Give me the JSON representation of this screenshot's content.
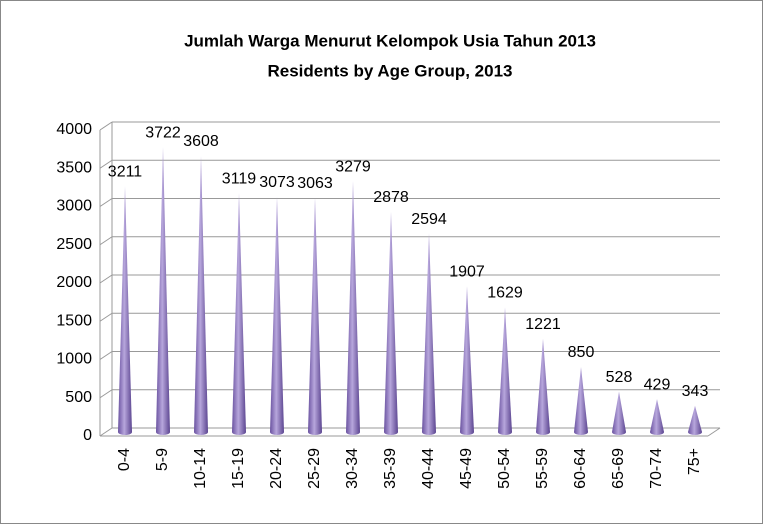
{
  "chart_data": {
    "type": "bar",
    "title": "Jumlah Warga Menurut Kelompok Usia Tahun 2013",
    "subtitle": "Residents by Age Group, 2013",
    "categories": [
      "0-4",
      "5-9",
      "10-14",
      "15-19",
      "20-24",
      "25-29",
      "30-34",
      "35-39",
      "40-44",
      "45-49",
      "50-54",
      "55-59",
      "60-64",
      "65-69",
      "70-74",
      "75+"
    ],
    "values": [
      3211,
      3722,
      3608,
      3119,
      3073,
      3063,
      3279,
      2878,
      2594,
      1907,
      1629,
      1221,
      850,
      528,
      429,
      343
    ],
    "color": "#8a72c0",
    "ylim": [
      0,
      4000
    ],
    "yticks": [
      0,
      500,
      1000,
      1500,
      2000,
      2500,
      3000,
      3500,
      4000
    ],
    "grid": true
  }
}
